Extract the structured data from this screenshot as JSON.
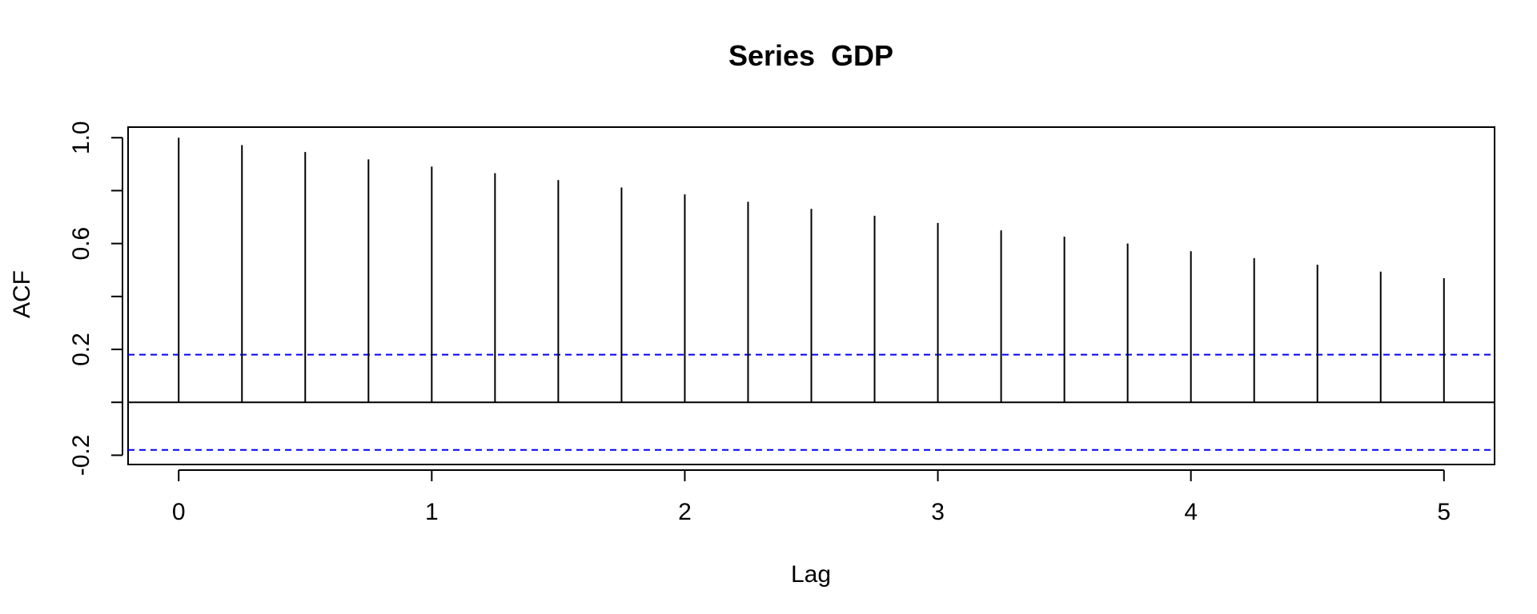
{
  "chart_data": {
    "type": "bar",
    "subtype": "acf",
    "title": "Series  GDP",
    "xlabel": "Lag",
    "ylabel": "ACF",
    "xlim": [
      -0.2,
      5.2
    ],
    "ylim": [
      -0.235,
      1.04
    ],
    "x_ticks": [
      0,
      1,
      2,
      3,
      4,
      5
    ],
    "x_tick_labels": [
      "0",
      "1",
      "2",
      "3",
      "4",
      "5"
    ],
    "y_ticks": [
      -0.2,
      0.0,
      0.2,
      0.4,
      0.6,
      0.8,
      1.0
    ],
    "y_tick_labels": [
      "-0.2",
      "",
      "0.2",
      "",
      "0.6",
      "",
      "1.0"
    ],
    "x": [
      0,
      0.25,
      0.5,
      0.75,
      1.0,
      1.25,
      1.5,
      1.75,
      2.0,
      2.25,
      2.5,
      2.75,
      3.0,
      3.25,
      3.5,
      3.75,
      4.0,
      4.25,
      4.5,
      4.75,
      5.0
    ],
    "values": [
      1.0,
      0.972,
      0.946,
      0.918,
      0.891,
      0.866,
      0.84,
      0.812,
      0.786,
      0.758,
      0.731,
      0.705,
      0.678,
      0.65,
      0.626,
      0.6,
      0.571,
      0.545,
      0.52,
      0.494,
      0.469
    ],
    "confidence_bounds": [
      0.18,
      -0.18
    ],
    "zero_line": 0,
    "grid": false,
    "colors": {
      "bars": "#000000",
      "confidence": "#0000ff",
      "axis": "#000000"
    }
  }
}
